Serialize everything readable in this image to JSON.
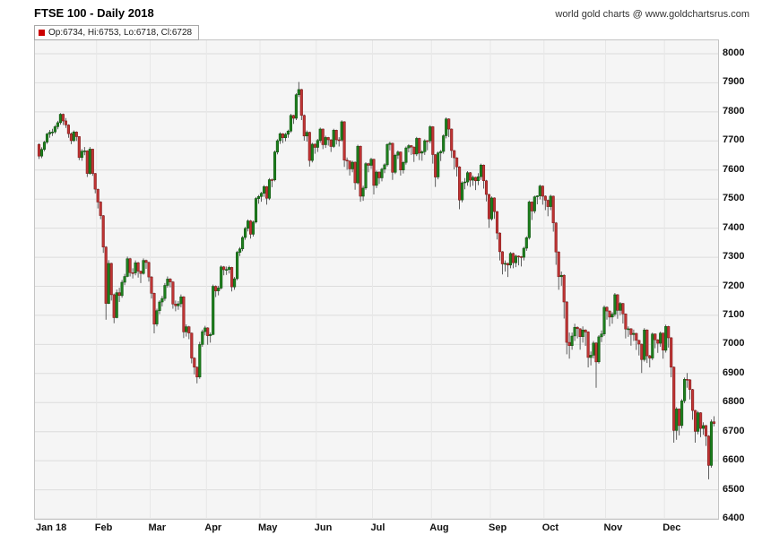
{
  "header": {
    "title": "FTSE 100 - Daily 2018",
    "source": "world gold charts @ www.goldchartsrus.com"
  },
  "legend": {
    "text": "Op:6734, Hi:6753, Lo:6718, Cl:6728",
    "swatch_color": "#cc0000"
  },
  "chart_data": {
    "type": "candlestick",
    "title": "FTSE 100 - Daily 2018",
    "xlabel": "",
    "ylabel": "",
    "grid": true,
    "legend_position": "top-left",
    "last_bar": {
      "open": 6734,
      "high": 6753,
      "low": 6718,
      "close": 6728
    },
    "up_color": "#1d7f1d",
    "down_color": "#bf3434",
    "up_border": "#0a4d0a",
    "down_border": "#7a1515",
    "y_axis": {
      "min": 6400,
      "max": 8000,
      "ticks": [
        6400,
        6500,
        6600,
        6700,
        6800,
        6900,
        7000,
        7100,
        7200,
        7300,
        7400,
        7500,
        7600,
        7700,
        7800,
        7900,
        8000
      ]
    },
    "x_labels": [
      "Jan 18",
      "Feb",
      "Mar",
      "Apr",
      "May",
      "Jun",
      "Jul",
      "Aug",
      "Sep",
      "Oct",
      "Nov",
      "Dec"
    ],
    "month_start_indices": [
      0,
      22,
      42,
      63,
      83,
      104,
      125,
      147,
      169,
      189,
      212,
      234
    ],
    "ohlc": [
      [
        7688,
        7692,
        7638,
        7648
      ],
      [
        7648,
        7678,
        7641,
        7671
      ],
      [
        7671,
        7700,
        7665,
        7696
      ],
      [
        7696,
        7728,
        7690,
        7724
      ],
      [
        7724,
        7738,
        7711,
        7730
      ],
      [
        7730,
        7742,
        7717,
        7731
      ],
      [
        7731,
        7755,
        7725,
        7749
      ],
      [
        7749,
        7769,
        7740,
        7763
      ],
      [
        7763,
        7796,
        7756,
        7792
      ],
      [
        7792,
        7794,
        7755,
        7769
      ],
      [
        7769,
        7779,
        7745,
        7755
      ],
      [
        7755,
        7757,
        7711,
        7725
      ],
      [
        7725,
        7729,
        7689,
        7701
      ],
      [
        7701,
        7736,
        7697,
        7731
      ],
      [
        7731,
        7733,
        7700,
        7715
      ],
      [
        7715,
        7716,
        7634,
        7643
      ],
      [
        7643,
        7672,
        7632,
        7665
      ],
      [
        7665,
        7679,
        7651,
        7666
      ],
      [
        7666,
        7668,
        7576,
        7588
      ],
      [
        7588,
        7679,
        7584,
        7672
      ],
      [
        7672,
        7673,
        7580,
        7588
      ],
      [
        7588,
        7590,
        7520,
        7534
      ],
      [
        7534,
        7536,
        7468,
        7490
      ],
      [
        7490,
        7493,
        7431,
        7443
      ],
      [
        7443,
        7445,
        7315,
        7335
      ],
      [
        7335,
        7338,
        7085,
        7141
      ],
      [
        7141,
        7290,
        7139,
        7279
      ],
      [
        7279,
        7281,
        7151,
        7171
      ],
      [
        7171,
        7175,
        7073,
        7092
      ],
      [
        7092,
        7189,
        7090,
        7178
      ],
      [
        7178,
        7195,
        7146,
        7168
      ],
      [
        7168,
        7222,
        7161,
        7214
      ],
      [
        7214,
        7243,
        7204,
        7234
      ],
      [
        7234,
        7302,
        7231,
        7295
      ],
      [
        7295,
        7298,
        7234,
        7247
      ],
      [
        7247,
        7262,
        7227,
        7246
      ],
      [
        7246,
        7289,
        7238,
        7281
      ],
      [
        7281,
        7284,
        7230,
        7252
      ],
      [
        7252,
        7254,
        7211,
        7244
      ],
      [
        7244,
        7296,
        7240,
        7289
      ],
      [
        7289,
        7292,
        7260,
        7282
      ],
      [
        7282,
        7285,
        7216,
        7232
      ],
      [
        7232,
        7235,
        7158,
        7176
      ],
      [
        7176,
        7178,
        7038,
        7070
      ],
      [
        7070,
        7123,
        7062,
        7116
      ],
      [
        7116,
        7152,
        7104,
        7146
      ],
      [
        7146,
        7167,
        7131,
        7158
      ],
      [
        7158,
        7211,
        7150,
        7203
      ],
      [
        7203,
        7234,
        7195,
        7225
      ],
      [
        7225,
        7228,
        7196,
        7215
      ],
      [
        7215,
        7218,
        7123,
        7139
      ],
      [
        7139,
        7151,
        7114,
        7133
      ],
      [
        7133,
        7149,
        7119,
        7140
      ],
      [
        7140,
        7172,
        7128,
        7164
      ],
      [
        7164,
        7166,
        7022,
        7043
      ],
      [
        7043,
        7069,
        7027,
        7061
      ],
      [
        7061,
        7064,
        7018,
        7039
      ],
      [
        7039,
        7041,
        6935,
        6953
      ],
      [
        6953,
        6956,
        6897,
        6922
      ],
      [
        6922,
        6924,
        6866,
        6888
      ],
      [
        6888,
        7009,
        6882,
        7000
      ],
      [
        7000,
        7051,
        6992,
        7044
      ],
      [
        7044,
        7064,
        7031,
        7057
      ],
      [
        7057,
        7059,
        6999,
        7030
      ],
      [
        7030,
        7041,
        7006,
        7034
      ],
      [
        7034,
        7206,
        7032,
        7200
      ],
      [
        7200,
        7203,
        7163,
        7184
      ],
      [
        7184,
        7202,
        7169,
        7194
      ],
      [
        7194,
        7272,
        7189,
        7267
      ],
      [
        7267,
        7270,
        7238,
        7257
      ],
      [
        7257,
        7268,
        7239,
        7258
      ],
      [
        7258,
        7271,
        7244,
        7265
      ],
      [
        7265,
        7267,
        7182,
        7198
      ],
      [
        7198,
        7232,
        7188,
        7226
      ],
      [
        7226,
        7322,
        7221,
        7317
      ],
      [
        7317,
        7335,
        7304,
        7329
      ],
      [
        7329,
        7373,
        7321,
        7368
      ],
      [
        7368,
        7404,
        7360,
        7399
      ],
      [
        7399,
        7430,
        7389,
        7425
      ],
      [
        7425,
        7428,
        7364,
        7379
      ],
      [
        7379,
        7426,
        7371,
        7421
      ],
      [
        7421,
        7507,
        7416,
        7502
      ],
      [
        7502,
        7514,
        7484,
        7509
      ],
      [
        7509,
        7525,
        7491,
        7520
      ],
      [
        7520,
        7548,
        7508,
        7543
      ],
      [
        7543,
        7545,
        7481,
        7503
      ],
      [
        7503,
        7572,
        7497,
        7567
      ],
      [
        7567,
        7571,
        7541,
        7566
      ],
      [
        7566,
        7667,
        7561,
        7662
      ],
      [
        7662,
        7706,
        7654,
        7701
      ],
      [
        7701,
        7730,
        7690,
        7725
      ],
      [
        7725,
        7727,
        7693,
        7711
      ],
      [
        7711,
        7728,
        7699,
        7723
      ],
      [
        7723,
        7739,
        7711,
        7734
      ],
      [
        7734,
        7793,
        7728,
        7788
      ],
      [
        7788,
        7790,
        7759,
        7778
      ],
      [
        7778,
        7864,
        7772,
        7859
      ],
      [
        7859,
        7903,
        7851,
        7877
      ],
      [
        7877,
        7879,
        7772,
        7788
      ],
      [
        7788,
        7791,
        7701,
        7717
      ],
      [
        7717,
        7736,
        7698,
        7730
      ],
      [
        7730,
        7732,
        7612,
        7633
      ],
      [
        7633,
        7694,
        7626,
        7689
      ],
      [
        7689,
        7691,
        7656,
        7678
      ],
      [
        7678,
        7707,
        7662,
        7702
      ],
      [
        7702,
        7746,
        7694,
        7741
      ],
      [
        7741,
        7743,
        7672,
        7687
      ],
      [
        7687,
        7718,
        7676,
        7712
      ],
      [
        7712,
        7714,
        7684,
        7704
      ],
      [
        7704,
        7706,
        7662,
        7681
      ],
      [
        7681,
        7742,
        7676,
        7737
      ],
      [
        7737,
        7739,
        7688,
        7704
      ],
      [
        7704,
        7713,
        7681,
        7703
      ],
      [
        7703,
        7771,
        7698,
        7766
      ],
      [
        7766,
        7768,
        7611,
        7634
      ],
      [
        7634,
        7643,
        7601,
        7631
      ],
      [
        7631,
        7633,
        7581,
        7604
      ],
      [
        7604,
        7632,
        7592,
        7627
      ],
      [
        7627,
        7629,
        7532,
        7556
      ],
      [
        7556,
        7687,
        7551,
        7682
      ],
      [
        7682,
        7684,
        7491,
        7510
      ],
      [
        7510,
        7546,
        7494,
        7538
      ],
      [
        7538,
        7627,
        7532,
        7622
      ],
      [
        7622,
        7625,
        7592,
        7616
      ],
      [
        7616,
        7642,
        7604,
        7637
      ],
      [
        7637,
        7639,
        7516,
        7547
      ],
      [
        7547,
        7598,
        7538,
        7593
      ],
      [
        7593,
        7595,
        7552,
        7573
      ],
      [
        7573,
        7608,
        7561,
        7603
      ],
      [
        7603,
        7623,
        7589,
        7618
      ],
      [
        7618,
        7692,
        7612,
        7688
      ],
      [
        7688,
        7697,
        7668,
        7692
      ],
      [
        7692,
        7694,
        7566,
        7592
      ],
      [
        7592,
        7656,
        7586,
        7651
      ],
      [
        7651,
        7667,
        7638,
        7662
      ],
      [
        7662,
        7664,
        7581,
        7600
      ],
      [
        7600,
        7631,
        7588,
        7626
      ],
      [
        7626,
        7681,
        7619,
        7676
      ],
      [
        7676,
        7689,
        7661,
        7684
      ],
      [
        7684,
        7686,
        7652,
        7679
      ],
      [
        7679,
        7681,
        7628,
        7655
      ],
      [
        7655,
        7714,
        7648,
        7709
      ],
      [
        7709,
        7711,
        7634,
        7658
      ],
      [
        7658,
        7668,
        7632,
        7663
      ],
      [
        7663,
        7706,
        7652,
        7701
      ],
      [
        7701,
        7703,
        7668,
        7700
      ],
      [
        7700,
        7754,
        7692,
        7749
      ],
      [
        7749,
        7751,
        7622,
        7653
      ],
      [
        7653,
        7655,
        7542,
        7576
      ],
      [
        7576,
        7664,
        7568,
        7659
      ],
      [
        7659,
        7669,
        7631,
        7664
      ],
      [
        7664,
        7723,
        7656,
        7718
      ],
      [
        7718,
        7781,
        7709,
        7776
      ],
      [
        7776,
        7778,
        7713,
        7741
      ],
      [
        7741,
        7743,
        7642,
        7667
      ],
      [
        7667,
        7669,
        7602,
        7642
      ],
      [
        7642,
        7644,
        7578,
        7611
      ],
      [
        7611,
        7613,
        7465,
        7497
      ],
      [
        7497,
        7561,
        7489,
        7556
      ],
      [
        7556,
        7572,
        7534,
        7559
      ],
      [
        7559,
        7596,
        7546,
        7591
      ],
      [
        7591,
        7593,
        7542,
        7565
      ],
      [
        7565,
        7581,
        7546,
        7575
      ],
      [
        7575,
        7577,
        7531,
        7563
      ],
      [
        7563,
        7589,
        7548,
        7577
      ],
      [
        7577,
        7622,
        7566,
        7617
      ],
      [
        7617,
        7619,
        7536,
        7563
      ],
      [
        7563,
        7566,
        7492,
        7516
      ],
      [
        7516,
        7518,
        7401,
        7432
      ],
      [
        7432,
        7509,
        7426,
        7504
      ],
      [
        7504,
        7506,
        7432,
        7457
      ],
      [
        7457,
        7459,
        7361,
        7383
      ],
      [
        7383,
        7386,
        7289,
        7319
      ],
      [
        7319,
        7321,
        7241,
        7277
      ],
      [
        7277,
        7289,
        7251,
        7279
      ],
      [
        7279,
        7281,
        7232,
        7273
      ],
      [
        7273,
        7318,
        7262,
        7313
      ],
      [
        7313,
        7316,
        7262,
        7281
      ],
      [
        7281,
        7309,
        7266,
        7304
      ],
      [
        7304,
        7306,
        7272,
        7302
      ],
      [
        7302,
        7304,
        7268,
        7300
      ],
      [
        7300,
        7336,
        7289,
        7331
      ],
      [
        7331,
        7372,
        7322,
        7367
      ],
      [
        7367,
        7495,
        7361,
        7490
      ],
      [
        7490,
        7492,
        7428,
        7459
      ],
      [
        7459,
        7512,
        7451,
        7508
      ],
      [
        7508,
        7513,
        7482,
        7511
      ],
      [
        7511,
        7550,
        7499,
        7545
      ],
      [
        7545,
        7547,
        7481,
        7510
      ],
      [
        7510,
        7513,
        7462,
        7496
      ],
      [
        7496,
        7498,
        7441,
        7474
      ],
      [
        7474,
        7515,
        7462,
        7510
      ],
      [
        7510,
        7512,
        7388,
        7418
      ],
      [
        7418,
        7421,
        7274,
        7318
      ],
      [
        7318,
        7321,
        7188,
        7233
      ],
      [
        7233,
        7251,
        7202,
        7238
      ],
      [
        7238,
        7241,
        7089,
        7146
      ],
      [
        7146,
        7149,
        6966,
        7007
      ],
      [
        7007,
        7041,
        6951,
        6996
      ],
      [
        6996,
        7041,
        6982,
        7029
      ],
      [
        7029,
        7071,
        7012,
        7059
      ],
      [
        7059,
        7062,
        7021,
        7054
      ],
      [
        7054,
        7056,
        6982,
        7027
      ],
      [
        7027,
        7062,
        7006,
        7050
      ],
      [
        7050,
        7052,
        6995,
        7043
      ],
      [
        7043,
        7045,
        6921,
        6955
      ],
      [
        6955,
        6976,
        6928,
        6963
      ],
      [
        6963,
        7012,
        6952,
        7005
      ],
      [
        7005,
        7008,
        6851,
        6940
      ],
      [
        6940,
        7032,
        6934,
        7026
      ],
      [
        7026,
        7048,
        7008,
        7036
      ],
      [
        7036,
        7134,
        7029,
        7128
      ],
      [
        7128,
        7131,
        7085,
        7115
      ],
      [
        7115,
        7117,
        7062,
        7094
      ],
      [
        7094,
        7111,
        7071,
        7104
      ],
      [
        7104,
        7177,
        7096,
        7171
      ],
      [
        7171,
        7173,
        7088,
        7117
      ],
      [
        7117,
        7146,
        7101,
        7141
      ],
      [
        7141,
        7143,
        7072,
        7105
      ],
      [
        7105,
        7107,
        7021,
        7053
      ],
      [
        7053,
        7062,
        7026,
        7054
      ],
      [
        7054,
        7056,
        6996,
        7034
      ],
      [
        7034,
        7051,
        7012,
        7038
      ],
      [
        7038,
        7040,
        6981,
        7014
      ],
      [
        7014,
        7016,
        6962,
        7001
      ],
      [
        7001,
        7003,
        6902,
        6948
      ],
      [
        6948,
        7056,
        6941,
        7050
      ],
      [
        7050,
        7052,
        6936,
        6961
      ],
      [
        6961,
        6964,
        6921,
        6953
      ],
      [
        6953,
        7041,
        6946,
        7036
      ],
      [
        7036,
        7038,
        6987,
        7016
      ],
      [
        7016,
        7018,
        6971,
        7004
      ],
      [
        7004,
        7044,
        6992,
        7039
      ],
      [
        7039,
        7041,
        6951,
        6980
      ],
      [
        6980,
        7068,
        6972,
        7062
      ],
      [
        7062,
        7064,
        6989,
        7023
      ],
      [
        7023,
        7025,
        6887,
        6922
      ],
      [
        6922,
        6924,
        6662,
        6704
      ],
      [
        6704,
        6784,
        6672,
        6778
      ],
      [
        6778,
        6780,
        6687,
        6721
      ],
      [
        6721,
        6812,
        6711,
        6806
      ],
      [
        6806,
        6886,
        6798,
        6880
      ],
      [
        6880,
        6902,
        6851,
        6878
      ],
      [
        6878,
        6881,
        6811,
        6845
      ],
      [
        6845,
        6847,
        6741,
        6773
      ],
      [
        6773,
        6775,
        6662,
        6701
      ],
      [
        6701,
        6771,
        6691,
        6765
      ],
      [
        6765,
        6767,
        6681,
        6711
      ],
      [
        6711,
        6732,
        6689,
        6721
      ],
      [
        6721,
        6723,
        6651,
        6685
      ],
      [
        6685,
        6688,
        6536,
        6584
      ],
      [
        6584,
        6742,
        6576,
        6734
      ],
      [
        6734,
        6753,
        6718,
        6728
      ]
    ]
  }
}
